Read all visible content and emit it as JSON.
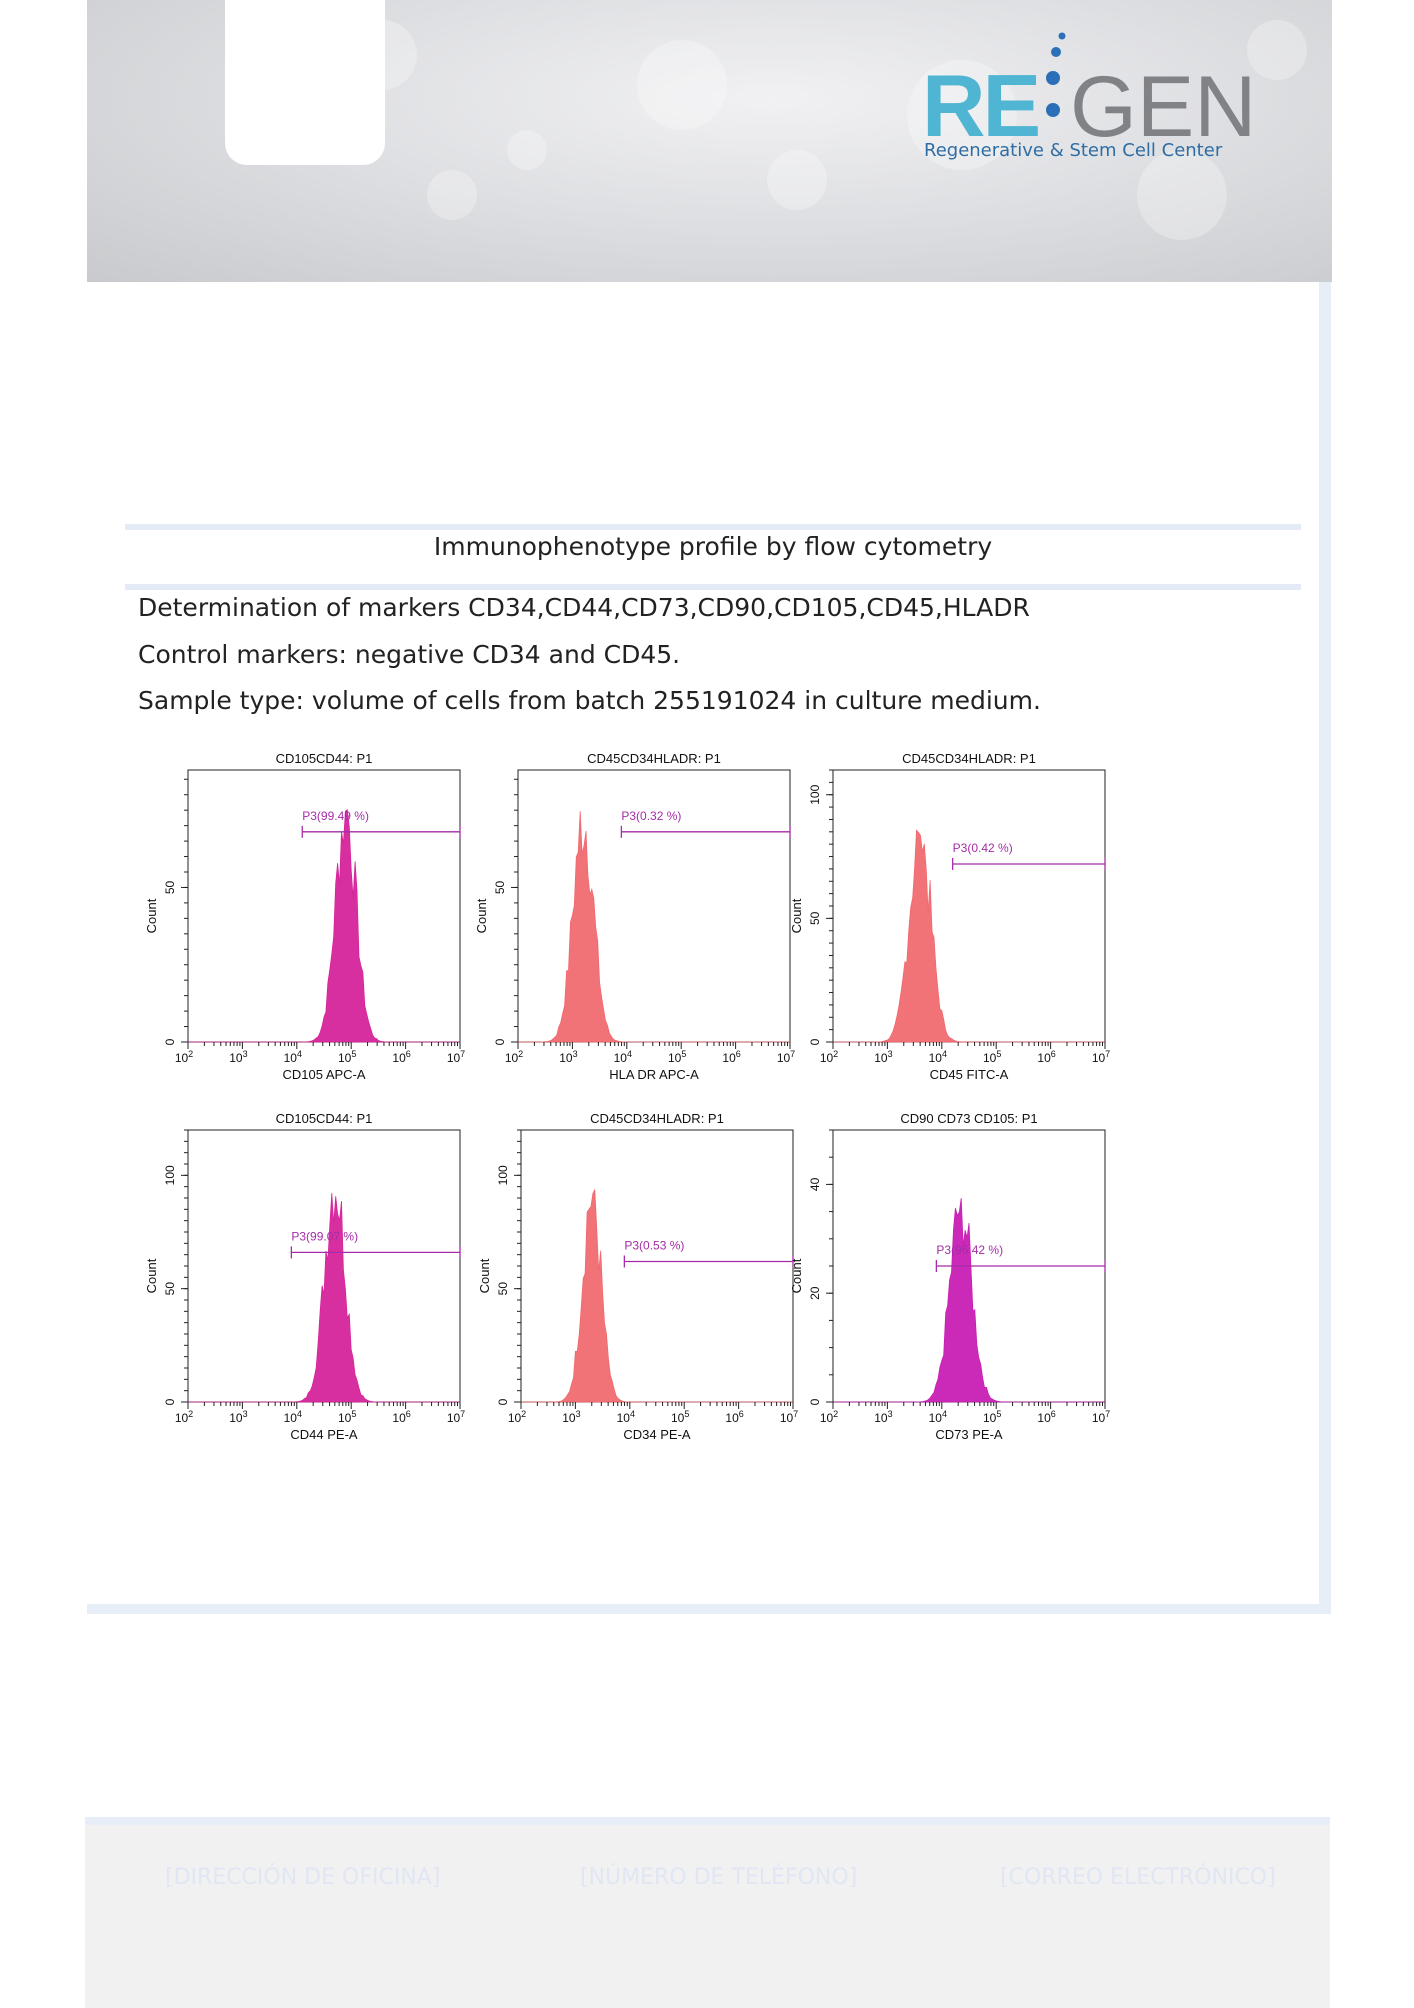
{
  "header": {
    "brand_re": "RE",
    "brand_gen": "GEN",
    "brand_subtitle": "Regenerative & Stem Cell Center",
    "colors": {
      "re": "#4fb5d2",
      "gen": "#808285",
      "dots": "#2a6fb8"
    }
  },
  "report": {
    "title": "Immunophenotype profile by flow cytometry",
    "markers_line": "Determination of markers  CD34,CD44,CD73,CD90,CD105,CD45,HLADR",
    "control_line": "Control markers: negative CD34 and CD45.",
    "sample_line": "Sample type: volume of cells from batch 255191024 in culture medium."
  },
  "footer": {
    "address": "[DIRECCIÓN DE OFICINA]",
    "phone": "[NÚMERO DE TELÉFONO]",
    "email": "[CORREO ELECTRÓNICO]"
  },
  "chart_data": [
    {
      "type": "area",
      "title": "CD105CD44: P1",
      "xlabel": "CD105 APC-A",
      "ylabel": "Count",
      "xscale": "log",
      "xlim": [
        2,
        7
      ],
      "ylim": [
        0,
        88
      ],
      "yticks": [
        "0",
        "50"
      ],
      "peak_center": 4.9,
      "peak_sd": 0.19,
      "peak_height": 78,
      "color": "#d6249b",
      "gate": {
        "label": "P3(99.49 %)",
        "from": 4.1,
        "to": 7.0,
        "y": 68
      }
    },
    {
      "type": "area",
      "title": "CD45CD34HLADR: P1",
      "xlabel": "HLA DR APC-A",
      "ylabel": "Count",
      "xscale": "log",
      "xlim": [
        2,
        7
      ],
      "ylim": [
        0,
        88
      ],
      "yticks": [
        "0",
        "50"
      ],
      "peak_center": 3.2,
      "peak_sd": 0.19,
      "peak_height": 76,
      "color": "#f06a70",
      "gate": {
        "label": "P3(0.32 %)",
        "from": 3.9,
        "to": 7.0,
        "y": 68
      }
    },
    {
      "type": "area",
      "title": "CD45CD34HLADR: P1",
      "xlabel": "CD45 FITC-A",
      "ylabel": "Count",
      "xscale": "log",
      "xlim": [
        2,
        7
      ],
      "ylim": [
        0,
        110
      ],
      "yticks": [
        "0",
        "50",
        "100"
      ],
      "peak_center": 3.6,
      "peak_sd": 0.2,
      "peak_height": 88,
      "color": "#f06a70",
      "gate": {
        "label": "P3(0.42 %)",
        "from": 4.2,
        "to": 7.0,
        "y": 72
      }
    },
    {
      "type": "area",
      "title": "CD105CD44: P1",
      "xlabel": "CD44 PE-A",
      "ylabel": "Count",
      "xscale": "log",
      "xlim": [
        2,
        7
      ],
      "ylim": [
        0,
        120
      ],
      "yticks": [
        "0",
        "50",
        "100"
      ],
      "peak_center": 4.7,
      "peak_sd": 0.19,
      "peak_height": 102,
      "color": "#d6249b",
      "gate": {
        "label": "P3(99.07 %)",
        "from": 3.9,
        "to": 7.0,
        "y": 66
      }
    },
    {
      "type": "area",
      "title": "CD45CD34HLADR: P1",
      "xlabel": "CD34 PE-A",
      "ylabel": "Count",
      "xscale": "log",
      "xlim": [
        2,
        7
      ],
      "ylim": [
        0,
        120
      ],
      "yticks": [
        "0",
        "50",
        "100"
      ],
      "peak_center": 3.3,
      "peak_sd": 0.17,
      "peak_height": 96,
      "color": "#f06a70",
      "gate": {
        "label": "P3(0.53 %)",
        "from": 3.9,
        "to": 7.0,
        "y": 62
      }
    },
    {
      "type": "area",
      "title": "CD90 CD73 CD105: P1",
      "xlabel": "CD73 PE-A",
      "ylabel": "Count",
      "xscale": "log",
      "xlim": [
        2,
        7
      ],
      "ylim": [
        0,
        50
      ],
      "yticks": [
        "0",
        "20",
        "40"
      ],
      "peak_center": 4.35,
      "peak_sd": 0.2,
      "peak_height": 38,
      "color": "#c81fb4",
      "gate": {
        "label": "P3(96.42 %)",
        "from": 3.9,
        "to": 7.0,
        "y": 25
      }
    }
  ]
}
